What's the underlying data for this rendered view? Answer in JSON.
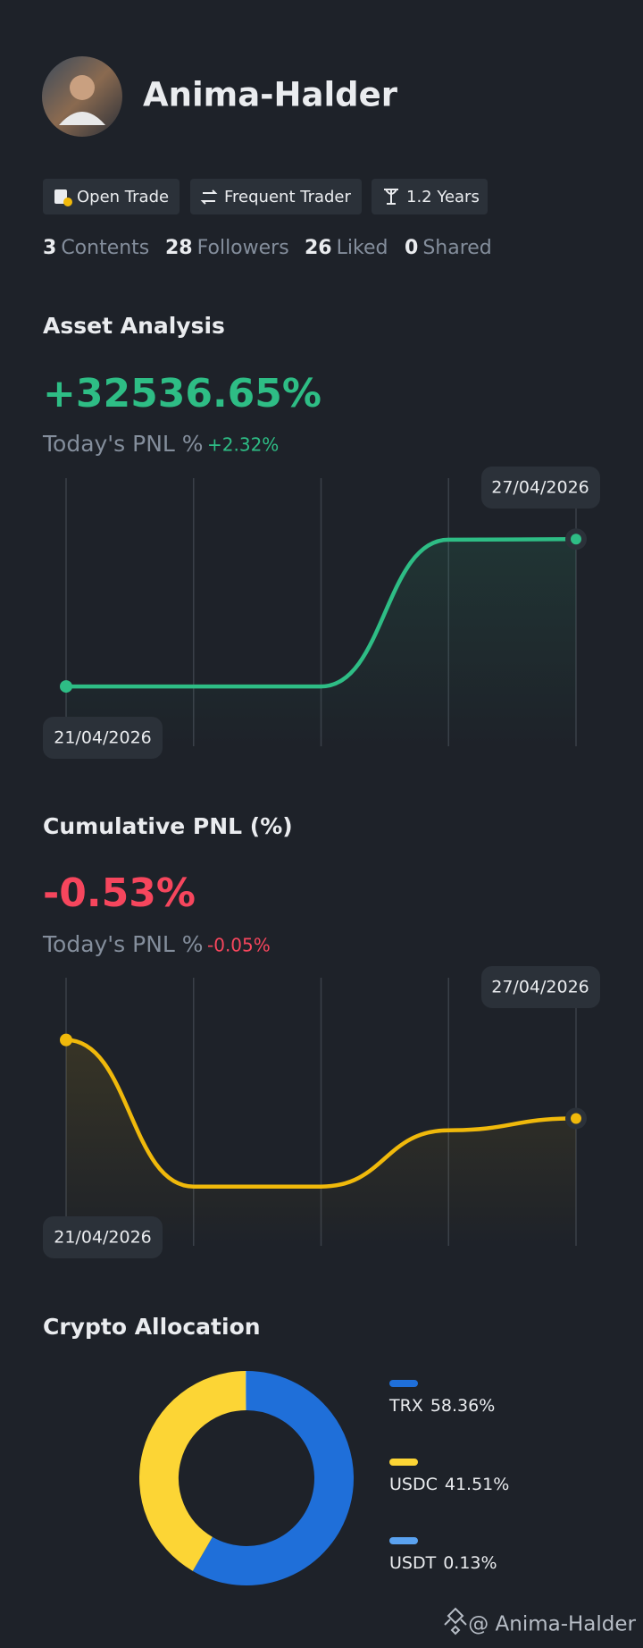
{
  "profile": {
    "name": "Anima-Halder",
    "tags": [
      "Open Trade",
      "Frequent Trader",
      "1.2 Years"
    ],
    "stats": [
      {
        "value": 3,
        "label": "Contents"
      },
      {
        "value": 28,
        "label": "Followers"
      },
      {
        "value": 26,
        "label": "Liked"
      },
      {
        "value": 0,
        "label": "Shared"
      }
    ]
  },
  "asset_analysis": {
    "title": "Asset Analysis",
    "headline": "+32536.65%",
    "today_label": "Today's PNL %",
    "today_value": "+2.32%",
    "chart": {
      "type": "line",
      "categories": [
        "21/04/2026",
        null,
        null,
        null,
        "27/04/2026"
      ],
      "values": [
        0,
        0,
        0,
        32400,
        32536.65
      ],
      "ylim": [
        -13200,
        46000
      ],
      "color": "#2ebd85"
    }
  },
  "cumulative_pnl": {
    "title": "Cumulative PNL (%)",
    "headline": "-0.53%",
    "today_label": "Today's PNL %",
    "today_value": "-0.05%",
    "chart": {
      "type": "line",
      "categories": [
        "21/04/2026",
        null,
        null,
        null,
        "27/04/2026"
      ],
      "values": [
        0,
        -0.99,
        -0.99,
        -0.61,
        -0.53
      ],
      "ylim": [
        -1.39,
        0.42
      ],
      "color": "#f0b90b"
    }
  },
  "allocation": {
    "title": "Crypto Allocation",
    "chart": {
      "type": "pie",
      "categories": [
        "TRX",
        "USDC",
        "USDT"
      ],
      "values": [
        58.36,
        41.51,
        0.13
      ],
      "value_labels": [
        "58.36%",
        "41.51%",
        "0.13%"
      ],
      "colors": [
        "#1f6fd9",
        "#fcd535",
        "#5aa2f0"
      ]
    }
  },
  "watermark": "@ Anima-Halder"
}
